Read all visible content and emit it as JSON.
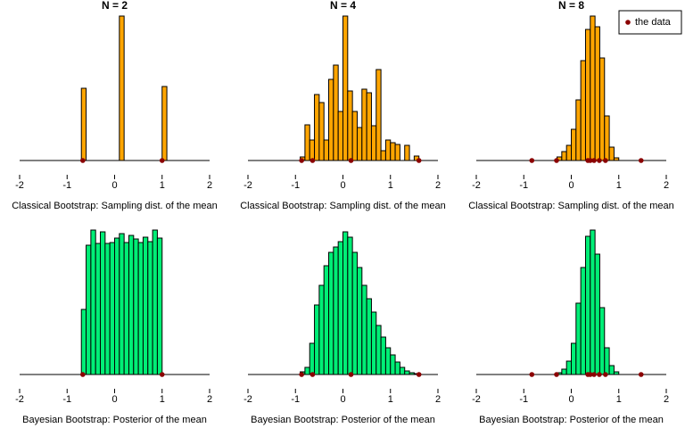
{
  "chart_data": [
    {
      "type": "histogram",
      "title": "N = 2",
      "xlabel": "Classical Bootstrap: Sampling dist. of the mean",
      "color": "#ffa500",
      "bins": [
        -0.7,
        -0.6,
        -0.5,
        -0.4,
        -0.3,
        -0.2,
        -0.1,
        0.0,
        0.1,
        0.2,
        0.3,
        0.4,
        0.5,
        0.6,
        0.7,
        0.8,
        0.9,
        1.0,
        1.1
      ],
      "counts": [
        81,
        0,
        0,
        0,
        0,
        0,
        0,
        0,
        162,
        0,
        0,
        0,
        0,
        0,
        0,
        0,
        0,
        83
      ],
      "points": {
        "color": "#8b0000",
        "x": [
          -0.67,
          1.0
        ]
      },
      "xlim": [
        -2,
        2
      ],
      "xticks": [
        -2,
        -1,
        0,
        1,
        2
      ],
      "ylim": [
        0,
        170
      ]
    },
    {
      "type": "histogram",
      "title": "N = 4",
      "xlabel": "Classical Bootstrap: Sampling dist. of the mean",
      "color": "#ffa500",
      "bins": [
        -0.9,
        -0.8,
        -0.7,
        -0.6,
        -0.5,
        -0.4,
        -0.3,
        -0.2,
        -0.1,
        0.0,
        0.1,
        0.2,
        0.3,
        0.4,
        0.5,
        0.6,
        0.7,
        0.8,
        0.9,
        1.0,
        1.1,
        1.2,
        1.3,
        1.4,
        1.5,
        1.6
      ],
      "counts": [
        4,
        40,
        23,
        74,
        65,
        23,
        91,
        107,
        55,
        162,
        78,
        55,
        37,
        80,
        76,
        39,
        102,
        11,
        23,
        20,
        18,
        0,
        17,
        0,
        5
      ],
      "points": {
        "color": "#8b0000",
        "x": [
          -0.87,
          -0.64,
          0.17,
          1.6
        ]
      },
      "xlim": [
        -2,
        2
      ],
      "xticks": [
        -2,
        -1,
        0,
        1,
        2
      ],
      "ylim": [
        0,
        170
      ]
    },
    {
      "type": "histogram",
      "title": "N = 8",
      "xlabel": "Classical Bootstrap: Sampling dist. of the mean",
      "color": "#ffa500",
      "bins": [
        -0.3,
        -0.2,
        -0.1,
        0.0,
        0.1,
        0.2,
        0.3,
        0.4,
        0.5,
        0.6,
        0.7,
        0.8,
        0.9,
        1.0
      ],
      "counts": [
        4,
        10,
        17,
        35,
        68,
        112,
        147,
        162,
        150,
        115,
        50,
        15,
        3
      ],
      "points": {
        "name": "the data",
        "color": "#8b0000",
        "x": [
          -0.83,
          -0.31,
          0.35,
          0.4,
          0.48,
          0.59,
          0.72,
          1.47
        ]
      },
      "legend": "topright",
      "xlim": [
        -2,
        2
      ],
      "xticks": [
        -2,
        -1,
        0,
        1,
        2
      ],
      "ylim": [
        0,
        170
      ]
    },
    {
      "type": "histogram",
      "xlabel": "Bayesian Bootstrap: Posterior of the mean",
      "color": "#00ee76",
      "bins": [
        -0.7,
        -0.6,
        -0.5,
        -0.4,
        -0.3,
        -0.2,
        -0.1,
        0.0,
        0.1,
        0.2,
        0.3,
        0.4,
        0.5,
        0.6,
        0.7,
        0.8,
        0.9,
        1.0
      ],
      "counts": [
        73,
        145,
        162,
        147,
        160,
        147,
        148,
        153,
        158,
        148,
        156,
        152,
        148,
        154,
        149,
        162,
        153
      ],
      "points": {
        "color": "#8b0000",
        "x": [
          -0.67,
          1.0
        ]
      },
      "xlim": [
        -2,
        2
      ],
      "xticks": [
        -2,
        -1,
        0,
        1,
        2
      ],
      "ylim": [
        0,
        170
      ]
    },
    {
      "type": "histogram",
      "xlabel": "Bayesian Bootstrap: Posterior of the mean",
      "color": "#00ee76",
      "bins": [
        -0.9,
        -0.8,
        -0.7,
        -0.6,
        -0.5,
        -0.4,
        -0.3,
        -0.2,
        -0.1,
        0.0,
        0.1,
        0.2,
        0.3,
        0.4,
        0.5,
        0.6,
        0.7,
        0.8,
        0.9,
        1.0,
        1.1,
        1.2,
        1.3,
        1.4,
        1.5,
        1.6
      ],
      "counts": [
        3,
        8,
        35,
        78,
        100,
        122,
        137,
        143,
        149,
        160,
        154,
        137,
        120,
        100,
        85,
        70,
        55,
        42,
        30,
        22,
        14,
        8,
        4,
        2,
        1
      ],
      "points": {
        "color": "#8b0000",
        "x": [
          -0.87,
          -0.64,
          0.17,
          1.6
        ]
      },
      "xlim": [
        -2,
        2
      ],
      "xticks": [
        -2,
        -1,
        0,
        1,
        2
      ],
      "ylim": [
        0,
        170
      ]
    },
    {
      "type": "histogram",
      "xlabel": "Bayesian Bootstrap: Posterior of the mean",
      "color": "#00ee76",
      "bins": [
        -0.3,
        -0.2,
        -0.1,
        0.0,
        0.1,
        0.2,
        0.3,
        0.4,
        0.5,
        0.6,
        0.7,
        0.8,
        0.9,
        1.0
      ],
      "counts": [
        2,
        6,
        15,
        35,
        80,
        120,
        155,
        162,
        135,
        75,
        30,
        10,
        3
      ],
      "points": {
        "color": "#8b0000",
        "x": [
          -0.83,
          -0.31,
          0.35,
          0.4,
          0.48,
          0.59,
          0.72,
          1.47
        ]
      },
      "xlim": [
        -2,
        2
      ],
      "xticks": [
        -2,
        -1,
        0,
        1,
        2
      ],
      "ylim": [
        0,
        170
      ]
    }
  ]
}
